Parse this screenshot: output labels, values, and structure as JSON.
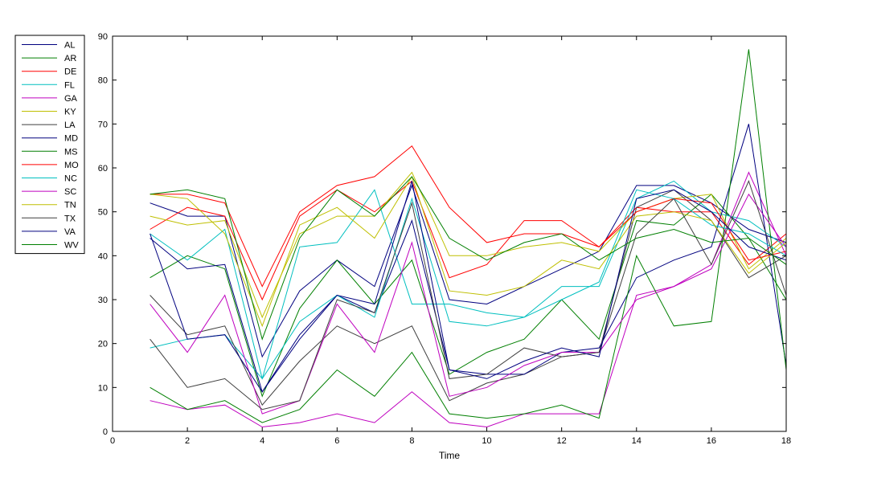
{
  "chart_data": {
    "type": "line",
    "title": "",
    "xlabel": "Time",
    "ylabel": "",
    "xlim": [
      0,
      18
    ],
    "ylim": [
      0,
      90
    ],
    "xticks": [
      0,
      2,
      4,
      6,
      8,
      10,
      12,
      14,
      16,
      18
    ],
    "yticks": [
      0,
      10,
      20,
      30,
      40,
      50,
      60,
      70,
      80,
      90
    ],
    "grid": false,
    "legend_position": "outside-left-top",
    "x": [
      1,
      2,
      3,
      4,
      5,
      6,
      7,
      8,
      9,
      10,
      11,
      12,
      13,
      14,
      15,
      16,
      17,
      18
    ],
    "series": [
      {
        "name": "AL",
        "color": "#00007f",
        "values": [
          52,
          49,
          49,
          17,
          32,
          39,
          33,
          56,
          30,
          29,
          33,
          37,
          41,
          56,
          56,
          52,
          46,
          43
        ]
      },
      {
        "name": "AR",
        "color": "#007f00",
        "values": [
          35,
          40,
          37,
          8,
          28,
          39,
          29,
          39,
          13,
          18,
          21,
          30,
          21,
          48,
          47,
          54,
          44,
          30
        ]
      },
      {
        "name": "DE",
        "color": "#ff0000",
        "values": [
          46,
          51,
          49,
          30,
          49,
          55,
          50,
          57,
          35,
          38,
          48,
          48,
          42,
          51,
          50,
          50,
          38,
          45
        ]
      },
      {
        "name": "FL",
        "color": "#00bfbf",
        "values": [
          19,
          21,
          22,
          12,
          42,
          43,
          55,
          29,
          29,
          27,
          26,
          33,
          33,
          53,
          57,
          50,
          48,
          42
        ]
      },
      {
        "name": "GA",
        "color": "#bf00bf",
        "values": [
          7,
          5,
          6,
          1,
          2,
          4,
          2,
          9,
          2,
          1,
          4,
          4,
          4,
          31,
          33,
          38,
          59,
          40
        ]
      },
      {
        "name": "KY",
        "color": "#bfbf00",
        "values": [
          49,
          47,
          48,
          26,
          45,
          49,
          49,
          59,
          40,
          40,
          42,
          43,
          41,
          50,
          53,
          54,
          37,
          44
        ]
      },
      {
        "name": "LA",
        "color": "#3f3f3f",
        "values": [
          31,
          22,
          24,
          6,
          16,
          24,
          20,
          24,
          7,
          11,
          13,
          17,
          18,
          51,
          55,
          48,
          35,
          40
        ]
      },
      {
        "name": "MD",
        "color": "#00007f",
        "values": [
          44,
          37,
          38,
          9,
          22,
          31,
          27,
          48,
          14,
          13,
          13,
          18,
          19,
          35,
          39,
          42,
          70,
          15
        ]
      },
      {
        "name": "MS",
        "color": "#007f00",
        "values": [
          10,
          5,
          7,
          2,
          5,
          14,
          8,
          18,
          4,
          3,
          4,
          6,
          3,
          40,
          24,
          25,
          87,
          14
        ]
      },
      {
        "name": "MO",
        "color": "#ff0000",
        "values": [
          54,
          54,
          52,
          33,
          50,
          56,
          58,
          65,
          51,
          43,
          45,
          45,
          42,
          50,
          53,
          52,
          39,
          41
        ]
      },
      {
        "name": "NC",
        "color": "#00bfbf",
        "values": [
          45,
          39,
          46,
          12,
          25,
          31,
          26,
          53,
          25,
          24,
          26,
          30,
          34,
          55,
          53,
          47,
          45,
          40
        ]
      },
      {
        "name": "SC",
        "color": "#bf00bf",
        "values": [
          29,
          18,
          31,
          4,
          7,
          29,
          18,
          43,
          8,
          10,
          15,
          18,
          18,
          30,
          33,
          37,
          54,
          42
        ]
      },
      {
        "name": "TN",
        "color": "#bfbf00",
        "values": [
          54,
          53,
          45,
          24,
          47,
          51,
          44,
          58,
          32,
          31,
          33,
          39,
          37,
          49,
          50,
          48,
          36,
          43
        ]
      },
      {
        "name": "TX",
        "color": "#3f3f3f",
        "values": [
          21,
          10,
          12,
          5,
          7,
          30,
          27,
          52,
          12,
          13,
          19,
          17,
          18,
          45,
          53,
          38,
          57,
          31
        ]
      },
      {
        "name": "VA",
        "color": "#00007f",
        "values": [
          45,
          21,
          22,
          9,
          21,
          31,
          29,
          57,
          14,
          12,
          16,
          19,
          17,
          53,
          55,
          50,
          42,
          39
        ]
      },
      {
        "name": "WV",
        "color": "#007f00",
        "values": [
          54,
          55,
          53,
          21,
          44,
          55,
          49,
          58,
          44,
          39,
          43,
          45,
          39,
          44,
          46,
          43,
          44,
          38
        ]
      }
    ]
  }
}
